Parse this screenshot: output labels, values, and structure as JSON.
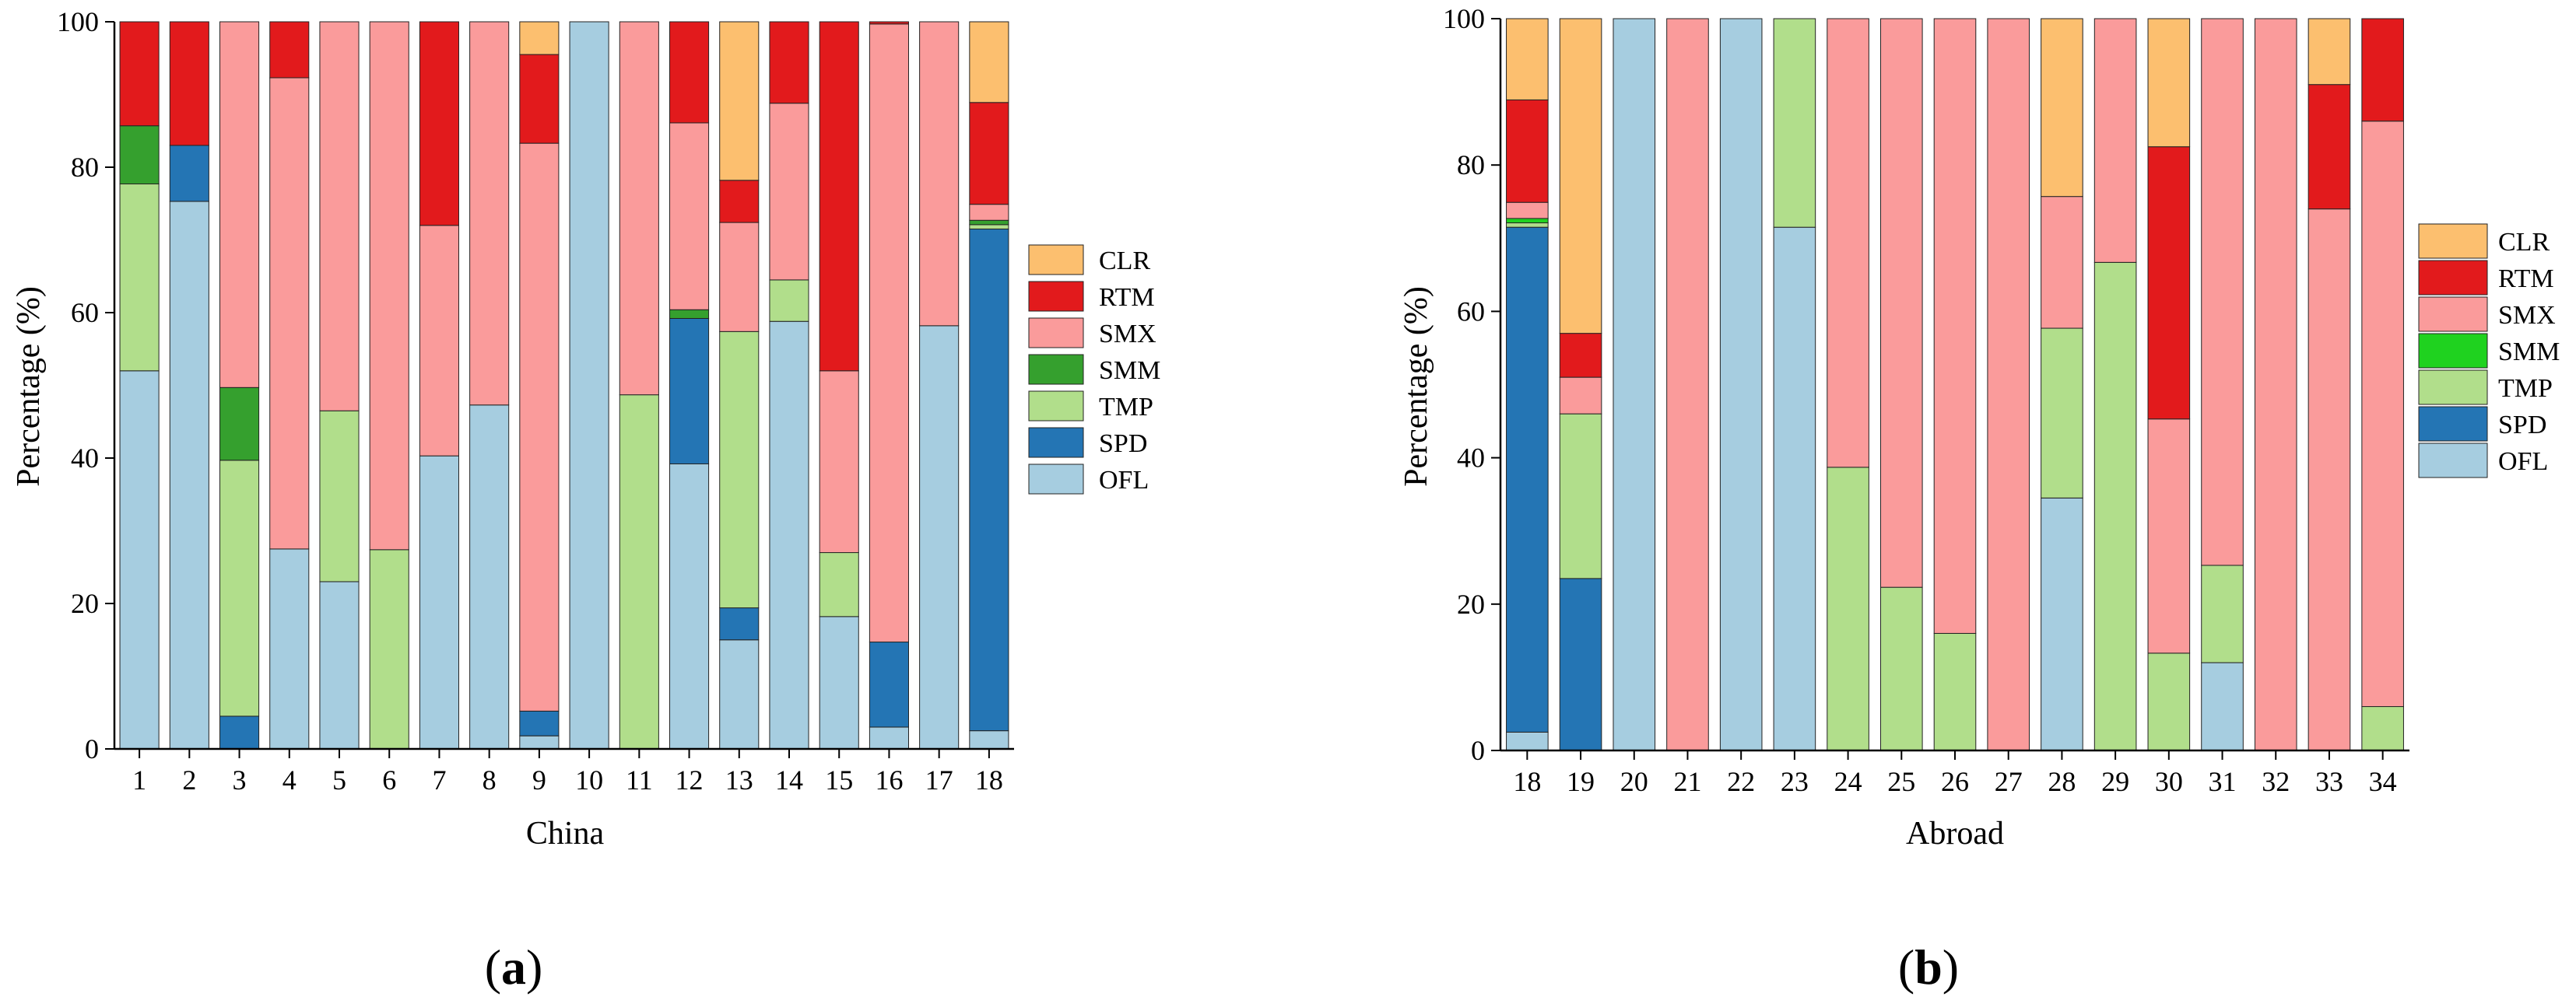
{
  "chart_data": [
    {
      "type": "bar",
      "stacked": true,
      "panel_label": "a",
      "xlabel": "China",
      "ylabel": "Percentage (%)",
      "ylim": [
        0,
        100
      ],
      "yticks": [
        0,
        20,
        40,
        60,
        80,
        100
      ],
      "legend_position": "right",
      "categories": [
        "1",
        "2",
        "3",
        "4",
        "5",
        "6",
        "7",
        "8",
        "9",
        "10",
        "11",
        "12",
        "13",
        "14",
        "15",
        "16",
        "17",
        "18"
      ],
      "series": [
        {
          "name": "OFL",
          "color": "#a6cde0",
          "values": [
            52,
            75.3,
            0,
            27.5,
            23,
            0,
            40.3,
            47.3,
            1.8,
            100,
            0,
            39.2,
            15,
            58.8,
            18.2,
            3,
            58.2,
            2.5
          ]
        },
        {
          "name": "SPD",
          "color": "#2475b4",
          "values": [
            0,
            7.7,
            4.5,
            0,
            0,
            0,
            0,
            0,
            3.4,
            0,
            0,
            20,
            4.4,
            0,
            0,
            11.7,
            0,
            69
          ]
        },
        {
          "name": "TMP",
          "color": "#b1de8b",
          "values": [
            25.7,
            0,
            35.2,
            0,
            23.5,
            27.4,
            0,
            0,
            0,
            0,
            48.7,
            0,
            38,
            5.7,
            8.8,
            0,
            0,
            0.6
          ]
        },
        {
          "name": "SMM",
          "color": "#35a02e",
          "values": [
            8,
            0,
            10,
            0,
            0,
            0,
            0,
            0,
            0,
            0,
            0,
            1.2,
            0,
            0,
            0,
            0,
            0,
            0.6
          ]
        },
        {
          "name": "SMX",
          "color": "#fa9b9b",
          "values": [
            0,
            0,
            50.3,
            64.8,
            53.5,
            72.6,
            31.7,
            52.7,
            78.1,
            0,
            51.3,
            25.7,
            15,
            24.3,
            25,
            85,
            41.8,
            2.2
          ]
        },
        {
          "name": "RTM",
          "color": "#e21a1c",
          "values": [
            14.3,
            17,
            0,
            7.7,
            0,
            0,
            28,
            0,
            12.2,
            0,
            0,
            13.9,
            5.8,
            11.2,
            48,
            0.3,
            0,
            14
          ]
        },
        {
          "name": "CLR",
          "color": "#fcbf6f",
          "values": [
            0,
            0,
            0,
            0,
            0,
            0,
            0,
            0,
            4.5,
            0,
            0,
            0,
            21.8,
            0,
            0,
            0,
            0,
            11.1
          ]
        }
      ]
    },
    {
      "type": "bar",
      "stacked": true,
      "panel_label": "b",
      "xlabel": "Abroad",
      "ylabel": "Percentage (%)",
      "ylim": [
        0,
        100
      ],
      "yticks": [
        0,
        20,
        40,
        60,
        80,
        100
      ],
      "legend_position": "right",
      "categories": [
        "18",
        "19",
        "20",
        "21",
        "22",
        "23",
        "24",
        "25",
        "26",
        "27",
        "28",
        "29",
        "30",
        "31",
        "32",
        "33",
        "34"
      ],
      "series": [
        {
          "name": "OFL",
          "color": "#a6cde0",
          "values": [
            2.5,
            0,
            100,
            0,
            100,
            71.5,
            0,
            0,
            0,
            0,
            34.5,
            0,
            0,
            12,
            0,
            0,
            0
          ]
        },
        {
          "name": "SPD",
          "color": "#2475b4",
          "values": [
            69,
            23.5,
            0,
            0,
            0,
            0,
            0,
            0,
            0,
            0,
            0,
            0,
            0,
            0,
            0,
            0,
            0
          ]
        },
        {
          "name": "TMP",
          "color": "#b1de8b",
          "values": [
            0.6,
            22.5,
            0,
            0,
            0,
            28.5,
            38.7,
            22.3,
            16,
            0,
            23.2,
            66.7,
            13.3,
            13.3,
            0,
            0,
            6
          ]
        },
        {
          "name": "SMM",
          "color": "#1fd21f",
          "values": [
            0.6,
            0,
            0,
            0,
            0,
            0,
            0,
            0,
            0,
            0,
            0,
            0,
            0,
            0,
            0,
            0,
            0
          ]
        },
        {
          "name": "SMX",
          "color": "#fa9b9b",
          "values": [
            2.2,
            5,
            0,
            100,
            0,
            0,
            61.3,
            77.7,
            84,
            100,
            18,
            33.3,
            32,
            74.7,
            100,
            74,
            80
          ]
        },
        {
          "name": "RTM",
          "color": "#e21a1c",
          "values": [
            14,
            6,
            0,
            0,
            0,
            0,
            0,
            0,
            0,
            0,
            0,
            0,
            37.2,
            0,
            0,
            17,
            14
          ]
        },
        {
          "name": "CLR",
          "color": "#fcbf6f",
          "values": [
            11.1,
            43,
            0,
            0,
            0,
            0,
            0,
            0,
            0,
            0,
            24.3,
            0,
            17.5,
            0,
            0,
            9,
            0
          ]
        }
      ]
    }
  ]
}
